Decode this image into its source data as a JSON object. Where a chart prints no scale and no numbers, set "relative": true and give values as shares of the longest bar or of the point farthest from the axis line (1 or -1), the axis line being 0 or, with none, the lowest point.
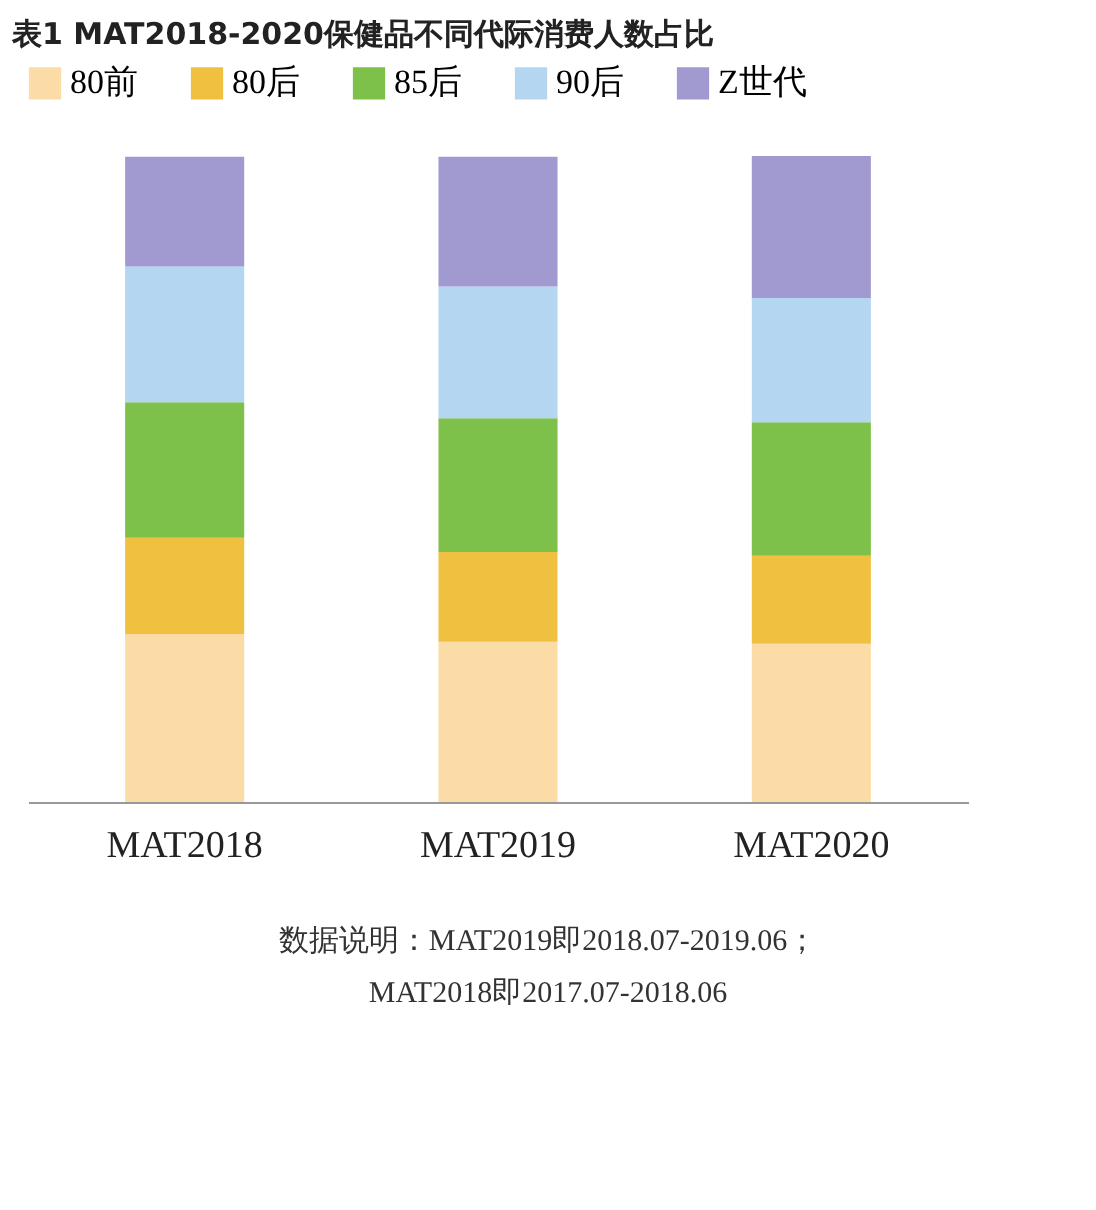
{
  "chart_data": {
    "type": "bar",
    "title": "表1 MAT2018-2020保健品不同代际消费人数占比",
    "categories": [
      "MAT2018",
      "MAT2019",
      "MAT2020"
    ],
    "stacked": true,
    "relative": true,
    "legend": "top",
    "series": [
      {
        "name": "80前",
        "color": "#fbdca6",
        "values": [
          0.26,
          0.248,
          0.245
        ]
      },
      {
        "name": "80后",
        "color": "#f0c040",
        "values": [
          0.149,
          0.139,
          0.136
        ]
      },
      {
        "name": "85后",
        "color": "#7dc14a",
        "values": [
          0.21,
          0.207,
          0.207
        ]
      },
      {
        "name": "90后",
        "color": "#b4d6f0",
        "values": [
          0.21,
          0.204,
          0.192
        ]
      },
      {
        "name": "Z世代",
        "color": "#a09ad0",
        "values": [
          0.17,
          0.201,
          0.22
        ]
      }
    ],
    "annotations": [
      "数据说明：MAT2019即2018.07-2019.06；MAT2018即2017.07-2018.06"
    ]
  }
}
